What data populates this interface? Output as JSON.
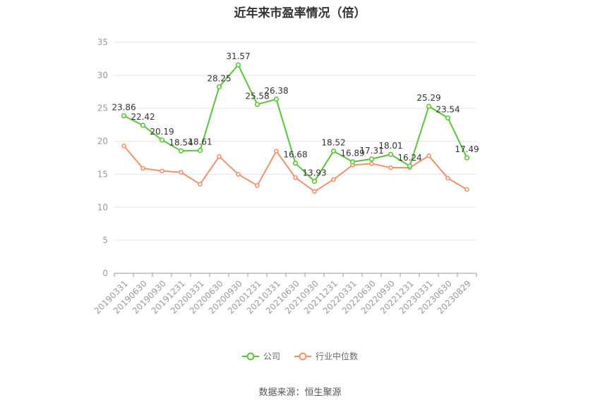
{
  "title": "近年来市盈率情况（倍）",
  "source": "数据来源：恒生聚源",
  "colors": {
    "company": "#5cc238",
    "industry": "#f2906b",
    "grid": "#e6e6e6",
    "axis": "#999999"
  },
  "chart_data": {
    "type": "line",
    "categories": [
      "20190331",
      "20190630",
      "20190930",
      "20191231",
      "20200331",
      "20200630",
      "20200930",
      "20201231",
      "20210331",
      "20210630",
      "20210930",
      "20211231",
      "20220331",
      "20220630",
      "20220930",
      "20221231",
      "20230331",
      "20230630",
      "20230829"
    ],
    "ylim": [
      0,
      35
    ],
    "yticks": [
      0,
      5,
      10,
      15,
      20,
      25,
      30,
      35
    ],
    "grid": true,
    "legend_position": "bottom",
    "series": [
      {
        "name": "公司",
        "values": [
          23.86,
          22.42,
          20.19,
          18.54,
          18.61,
          28.25,
          31.57,
          25.58,
          26.38,
          16.68,
          13.93,
          18.52,
          16.89,
          17.31,
          18.01,
          16.24,
          25.29,
          23.54,
          17.49
        ],
        "labels": [
          "23.86",
          "22.42",
          "20.19",
          "18.54",
          "18.61",
          "28.25",
          "31.57",
          "25.58",
          "26.38",
          "16.68",
          "13.93",
          "18.52",
          "16.89",
          "17.31",
          "18.01",
          "16.24",
          "25.29",
          "23.54",
          "17.49"
        ]
      },
      {
        "name": "行业中位数",
        "values": [
          19.3,
          15.9,
          15.5,
          15.3,
          13.5,
          17.7,
          15.0,
          13.3,
          18.5,
          14.5,
          12.4,
          14.2,
          16.4,
          16.6,
          16.0,
          16.0,
          17.8,
          14.4,
          12.7
        ]
      }
    ]
  }
}
